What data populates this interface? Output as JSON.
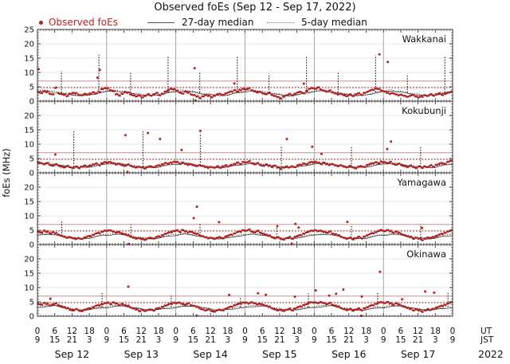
{
  "title": "Observed foEs (Sep 12 - Sep 17, 2022)",
  "legend": {
    "observed": "Observed foEs",
    "median27": "27-day median",
    "median5": "5-day median"
  },
  "colors": {
    "observed_dot": "#b41f1f",
    "legend_red": "#c01f1f",
    "median27_line": "#2a2a2a",
    "median5_line": "#111111",
    "ref_solid": "#d08d8d",
    "ref_dotted": "#a02020",
    "grid_h": "#dcdcdc",
    "day_line": "#909090",
    "border": "#333333"
  },
  "chart_data": {
    "type": "scatter",
    "ylabel": "foEs (MHz)",
    "ylim": [
      0,
      25
    ],
    "hours_total": 144,
    "y_axis": {
      "ticks_first": [
        0,
        5,
        10,
        15,
        20,
        25
      ],
      "ticks_rest": [
        0,
        5,
        10,
        15,
        20
      ]
    },
    "x_axis": {
      "ut_labels": [
        0,
        6,
        12,
        18,
        0,
        6,
        12,
        18,
        0,
        6,
        12,
        18,
        0,
        6,
        12,
        18,
        0,
        6,
        12,
        18,
        0,
        6,
        12,
        18,
        0
      ],
      "jst_labels": [
        9,
        15,
        21,
        3,
        9,
        15,
        21,
        3,
        9,
        15,
        21,
        3,
        9,
        15,
        21,
        3,
        9,
        15,
        21,
        3,
        9,
        15,
        21,
        3,
        9
      ],
      "ut_caption": "UT",
      "jst_caption": "JST",
      "days": [
        "Sep 12",
        "Sep 13",
        "Sep 14",
        "Sep 15",
        "Sep 16",
        "Sep 17"
      ],
      "year": "2022"
    },
    "ref_lines": {
      "solid": {
        "value": 7.0,
        "color": "#d08d8d"
      },
      "dotted": {
        "value": 4.7,
        "color": "#a02020"
      }
    },
    "panels": [
      {
        "station": "Wakkanai",
        "obs_hourly": [
          3.2,
          2.9,
          3.4,
          3.1,
          2.6,
          2.4,
          4.6,
          2.8,
          2.5,
          2.2,
          1.7,
          2.6,
          2.9,
          2.7,
          2.3,
          2.1,
          2.5,
          2.2,
          2.7,
          3.1,
          2.6,
          3.4,
          4.2,
          4.5,
          4.4,
          3.9,
          3.5,
          2.4,
          2.1,
          2.6,
          3.1,
          2.9,
          2.4,
          2.0,
          1.6,
          2.1,
          1.4,
          1.8,
          2.3,
          2.0,
          2.4,
          2.8,
          2.2,
          2.6,
          3.3,
          3.7,
          4.4,
          4.1,
          3.6,
          3.1,
          2.7,
          3.3,
          2.9,
          2.4,
          2.1,
          1.6,
          1.2,
          1.7,
          2.1,
          1.8,
          1.5,
          1.9,
          2.3,
          2.6,
          2.2,
          2.7,
          3.0,
          3.4,
          3.8,
          3.3,
          4.0,
          4.3,
          4.1,
          4.4,
          3.8,
          3.4,
          3.0,
          3.3,
          2.7,
          2.4,
          2.8,
          2.2,
          1.8,
          1.4,
          1.1,
          1.6,
          2.0,
          2.4,
          2.1,
          2.6,
          3.0,
          3.3,
          2.8,
          3.5,
          4.2,
          4.6,
          4.3,
          4.7,
          4.1,
          3.7,
          3.3,
          3.6,
          3.1,
          2.7,
          2.3,
          2.6,
          2.1,
          1.7,
          2.2,
          1.9,
          2.4,
          2.7,
          2.3,
          2.9,
          3.2,
          3.6,
          4.0,
          4.4,
          4.2,
          3.8,
          3.4,
          2.9,
          2.5,
          2.8,
          2.4,
          2.0,
          2.3,
          1.9,
          1.5,
          1.8,
          2.2,
          1.6,
          1.3,
          1.7,
          2.1,
          1.8,
          2.3,
          2.0,
          2.4,
          2.7,
          2.3,
          2.6,
          2.9,
          3.1
        ],
        "outliers": [
          [
            0.4,
            11.2
          ],
          [
            20.8,
            8.2
          ],
          [
            21.6,
            10.9
          ],
          [
            54.5,
            11.5
          ],
          [
            68.3,
            6.2
          ],
          [
            92.4,
            6.1
          ],
          [
            118.6,
            16.3
          ],
          [
            121.5,
            13.7
          ],
          [
            54.8,
            0.25
          ]
        ],
        "median27_day": [
          3.3,
          3.6,
          3.1,
          2.6,
          2.2,
          1.9,
          2.1,
          2.8
        ],
        "median5_day": [
          3.6,
          3.9,
          3.4,
          2.9,
          2.4,
          2.1,
          2.3,
          3.0
        ],
        "spikes": [
          [
            8.3,
            10.5
          ],
          [
            21.3,
            16.2
          ],
          [
            32.3,
            9.8
          ],
          [
            45.3,
            15.8
          ],
          [
            56.3,
            10.2
          ],
          [
            69.3,
            15.5
          ],
          [
            80.3,
            9.6
          ],
          [
            93.3,
            15.9
          ],
          [
            104.3,
            10.0
          ],
          [
            117.3,
            16.0
          ],
          [
            128.3,
            9.5
          ],
          [
            141.3,
            15.6
          ]
        ]
      },
      {
        "station": "Kokubunji",
        "obs_hourly": [
          3.8,
          3.4,
          3.0,
          3.3,
          2.8,
          2.5,
          2.9,
          2.6,
          2.2,
          1.9,
          2.3,
          2.0,
          1.7,
          2.1,
          1.8,
          2.2,
          2.5,
          2.1,
          2.6,
          2.9,
          3.2,
          2.8,
          3.4,
          3.7,
          3.5,
          3.8,
          3.3,
          2.9,
          3.2,
          2.7,
          2.4,
          2.8,
          2.5,
          2.1,
          1.8,
          2.2,
          1.9,
          1.5,
          2.0,
          2.3,
          2.0,
          2.4,
          2.7,
          3.0,
          3.4,
          3.1,
          3.6,
          3.9,
          3.7,
          3.3,
          3.6,
          3.1,
          2.7,
          3.0,
          2.6,
          2.3,
          2.7,
          2.4,
          2.0,
          1.7,
          2.1,
          1.8,
          2.2,
          1.9,
          2.3,
          2.6,
          2.2,
          2.8,
          3.1,
          3.5,
          3.2,
          3.8,
          3.6,
          3.9,
          3.4,
          3.0,
          3.3,
          2.8,
          2.5,
          2.9,
          2.4,
          2.1,
          2.5,
          1.8,
          1.5,
          1.9,
          2.2,
          1.8,
          2.3,
          2.0,
          2.6,
          2.9,
          3.3,
          3.0,
          3.5,
          3.8,
          3.9,
          3.5,
          3.2,
          3.6,
          3.0,
          2.7,
          3.1,
          2.6,
          2.3,
          2.7,
          2.2,
          1.9,
          2.3,
          2.0,
          1.6,
          2.1,
          2.4,
          2.1,
          2.7,
          3.0,
          3.4,
          3.7,
          3.3,
          4.0,
          3.8,
          3.4,
          3.7,
          3.2,
          2.8,
          3.1,
          2.7,
          2.4,
          2.0,
          2.4,
          2.1,
          1.7,
          2.2,
          1.9,
          2.3,
          2.0,
          2.5,
          2.2,
          2.8,
          3.1,
          3.5,
          3.2,
          3.8,
          4.1
        ],
        "outliers": [
          [
            6.2,
            6.4
          ],
          [
            30.5,
            13.1
          ],
          [
            38.3,
            13.9
          ],
          [
            42.5,
            11.8
          ],
          [
            50.0,
            8.0
          ],
          [
            56.5,
            14.6
          ],
          [
            86.5,
            11.8
          ],
          [
            95.3,
            9.1
          ],
          [
            98.5,
            6.6
          ],
          [
            121.3,
            8.3
          ],
          [
            122.6,
            10.9
          ],
          [
            31.2,
            0.3
          ]
        ],
        "median27_day": [
          3.0,
          3.3,
          2.9,
          2.4,
          2.0,
          1.8,
          2.0,
          2.6
        ],
        "median5_day": [
          3.3,
          3.6,
          3.1,
          2.6,
          2.2,
          2.0,
          2.2,
          2.9
        ],
        "spikes": [
          [
            12.6,
            14.9
          ],
          [
            36.6,
            14.4
          ],
          [
            56.5,
            13.8
          ],
          [
            84.6,
            9.6
          ],
          [
            108.9,
            9.5
          ],
          [
            132.9,
            9.4
          ]
        ]
      },
      {
        "station": "Yamagawa",
        "obs_hourly": [
          4.6,
          4.2,
          4.8,
          4.4,
          4.0,
          4.3,
          3.9,
          3.5,
          3.1,
          2.7,
          2.3,
          2.6,
          2.2,
          1.9,
          2.3,
          2.0,
          2.4,
          2.7,
          3.0,
          3.4,
          3.8,
          4.1,
          4.5,
          4.8,
          4.7,
          5.0,
          4.5,
          4.1,
          4.4,
          3.9,
          3.6,
          3.2,
          2.8,
          2.4,
          2.0,
          2.3,
          1.9,
          1.6,
          2.1,
          2.4,
          2.1,
          2.6,
          2.9,
          3.3,
          3.7,
          4.0,
          4.4,
          4.7,
          4.9,
          4.5,
          5.1,
          4.6,
          4.2,
          4.5,
          4.0,
          3.7,
          3.3,
          2.9,
          2.5,
          2.1,
          2.4,
          2.0,
          2.3,
          2.6,
          2.2,
          2.8,
          3.1,
          3.5,
          3.9,
          4.3,
          4.6,
          5.0,
          4.8,
          5.1,
          4.6,
          4.3,
          4.7,
          4.2,
          3.8,
          3.4,
          3.0,
          2.6,
          2.2,
          2.5,
          2.1,
          1.8,
          2.2,
          2.5,
          2.1,
          2.7,
          3.0,
          3.4,
          3.8,
          4.2,
          4.5,
          4.9,
          5.0,
          4.6,
          4.9,
          4.5,
          4.1,
          4.4,
          3.9,
          3.6,
          3.2,
          2.8,
          2.4,
          2.0,
          2.3,
          1.9,
          2.2,
          2.6,
          2.3,
          2.8,
          3.2,
          3.6,
          4.0,
          4.3,
          4.7,
          5.1,
          4.7,
          5.0,
          4.6,
          4.2,
          4.5,
          4.0,
          3.7,
          3.3,
          2.9,
          2.5,
          2.1,
          2.4,
          2.0,
          1.7,
          2.1,
          2.4,
          2.2,
          2.7,
          3.0,
          3.4,
          3.8,
          4.1,
          4.5,
          4.8
        ],
        "outliers": [
          [
            54.2,
            9.2
          ],
          [
            55.3,
            13.2
          ],
          [
            63.0,
            7.8
          ],
          [
            83.2,
            6.4
          ],
          [
            89.5,
            7.2
          ],
          [
            90.6,
            5.9
          ],
          [
            107.5,
            7.9
          ],
          [
            133.4,
            5.8
          ],
          [
            31.7,
            0.2
          ],
          [
            88.2,
            0.3
          ]
        ],
        "median27_day": [
          3.2,
          3.6,
          3.3,
          2.7,
          2.2,
          2.0,
          2.2,
          2.9
        ],
        "median5_day": [
          3.5,
          3.9,
          3.5,
          2.9,
          2.4,
          2.2,
          2.4,
          3.1
        ],
        "spikes": [
          [
            8.4,
            8.1
          ],
          [
            32.4,
            6.9
          ],
          [
            56.4,
            7.3
          ],
          [
            83.0,
            6.6
          ],
          [
            108.9,
            6.6
          ],
          [
            132.9,
            7.1
          ]
        ]
      },
      {
        "station": "Okinawa",
        "obs_hourly": [
          4.4,
          4.1,
          4.6,
          4.2,
          3.8,
          4.1,
          4.4,
          3.9,
          3.5,
          3.1,
          2.7,
          2.3,
          2.0,
          2.4,
          2.1,
          1.8,
          2.2,
          2.5,
          2.8,
          3.2,
          3.6,
          3.9,
          4.2,
          4.5,
          4.6,
          4.3,
          4.8,
          4.4,
          4.0,
          4.3,
          3.8,
          3.5,
          3.1,
          2.7,
          2.3,
          1.9,
          2.2,
          1.8,
          2.1,
          2.4,
          2.0,
          2.6,
          2.9,
          3.3,
          3.7,
          4.0,
          4.4,
          4.7,
          4.5,
          4.8,
          4.3,
          4.0,
          4.4,
          3.9,
          3.6,
          3.2,
          2.8,
          2.4,
          2.0,
          2.3,
          1.9,
          1.6,
          2.0,
          2.3,
          2.1,
          2.6,
          3.0,
          3.4,
          3.8,
          4.1,
          4.5,
          4.8,
          4.7,
          4.4,
          4.9,
          4.5,
          4.1,
          4.4,
          4.0,
          3.6,
          3.2,
          2.8,
          2.4,
          2.0,
          2.3,
          1.9,
          2.2,
          2.5,
          2.1,
          2.7,
          3.1,
          3.5,
          3.9,
          4.2,
          4.6,
          4.9,
          4.8,
          4.5,
          5.0,
          4.6,
          4.2,
          4.5,
          4.0,
          3.7,
          3.3,
          2.9,
          2.5,
          2.1,
          2.4,
          2.0,
          2.3,
          2.6,
          2.2,
          2.8,
          3.1,
          3.5,
          3.9,
          4.3,
          4.6,
          5.0,
          4.6,
          4.9,
          4.4,
          4.1,
          4.5,
          4.0,
          3.7,
          3.3,
          2.9,
          2.5,
          2.1,
          2.4,
          2.0,
          1.7,
          2.1,
          2.4,
          2.1,
          2.6,
          3.0,
          3.3,
          3.7,
          4.0,
          4.4,
          4.7
        ],
        "outliers": [
          [
            4.5,
            6.1
          ],
          [
            31.5,
            10.3
          ],
          [
            66.5,
            7.4
          ],
          [
            76.5,
            8.0
          ],
          [
            79.2,
            7.5
          ],
          [
            89.3,
            6.8
          ],
          [
            96.5,
            9.0
          ],
          [
            101.2,
            7.2
          ],
          [
            103.6,
            7.8
          ],
          [
            106.1,
            9.3
          ],
          [
            112.5,
            6.9
          ],
          [
            118.8,
            15.5
          ],
          [
            126.5,
            5.9
          ],
          [
            134.5,
            8.6
          ],
          [
            137.6,
            8.2
          ],
          [
            55.2,
            0.2
          ],
          [
            112.3,
            0.15
          ]
        ],
        "median27_day": [
          3.0,
          3.4,
          3.6,
          3.0,
          2.4,
          2.1,
          2.3,
          2.7
        ],
        "median5_day": [
          3.3,
          3.7,
          3.8,
          3.2,
          2.6,
          2.3,
          2.5,
          3.0
        ],
        "spikes": [
          [
            22.4,
            8.1
          ],
          [
            46.4,
            7.2
          ],
          [
            70.4,
            6.8
          ],
          [
            94.0,
            8.0
          ],
          [
            118.0,
            8.4
          ],
          [
            142.4,
            8.5
          ]
        ]
      }
    ]
  }
}
